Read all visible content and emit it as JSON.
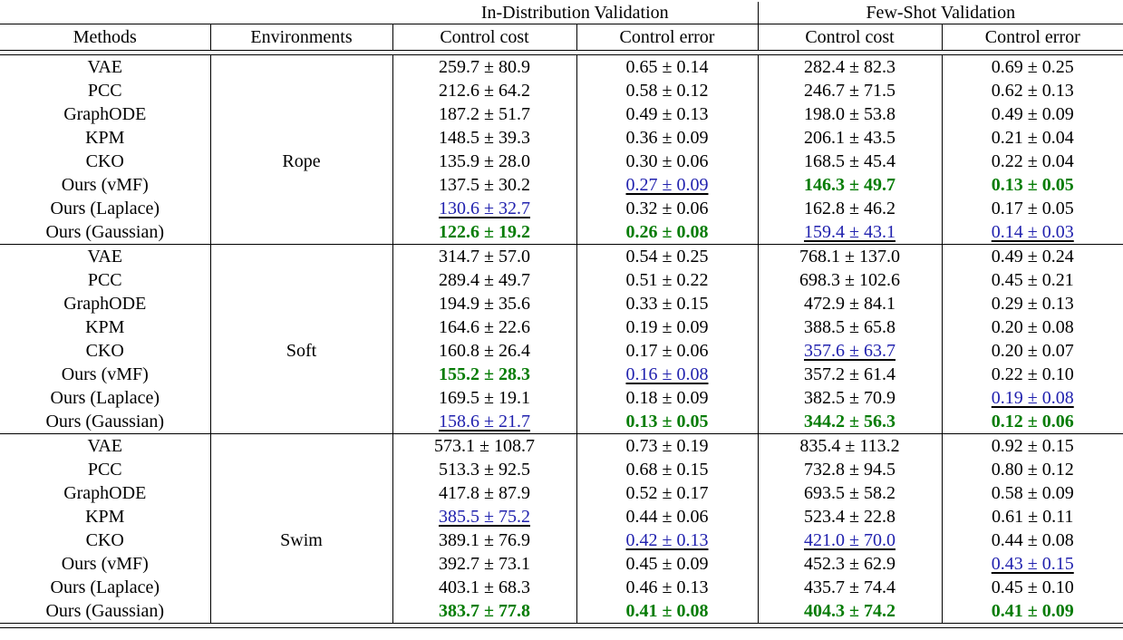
{
  "page": {
    "background": "#ffffff"
  },
  "table": {
    "top_headers": {
      "in_distribution": "In-Distribution Validation",
      "few_shot": "Few-Shot Validation"
    },
    "column_headers": {
      "methods": "Methods",
      "environments": "Environments",
      "id_cost": "Control cost",
      "id_error": "Control error",
      "fs_cost": "Control cost",
      "fs_error": "Control error"
    },
    "colors": {
      "best_bold_green": "#067c06",
      "second_best_blue_underlined": "#2021ae",
      "rule_black": "#000000"
    },
    "blocks": [
      {
        "environment": "Rope",
        "rows": [
          {
            "method": "VAE",
            "values": [
              [
                "259.7 ± 80.9",
                "n"
              ],
              [
                "0.65 ± 0.14",
                "n"
              ],
              [
                "282.4 ± 82.3",
                "n"
              ],
              [
                "0.69 ± 0.25",
                "n"
              ]
            ]
          },
          {
            "method": "PCC",
            "values": [
              [
                "212.6 ± 64.2",
                "n"
              ],
              [
                "0.58 ± 0.12",
                "n"
              ],
              [
                "246.7 ± 71.5",
                "n"
              ],
              [
                "0.62 ± 0.13",
                "n"
              ]
            ]
          },
          {
            "method": "GraphODE",
            "values": [
              [
                "187.2 ± 51.7",
                "n"
              ],
              [
                "0.49 ± 0.13",
                "n"
              ],
              [
                "198.0 ± 53.8",
                "n"
              ],
              [
                "0.49 ± 0.09",
                "n"
              ]
            ]
          },
          {
            "method": "KPM",
            "values": [
              [
                "148.5 ± 39.3",
                "n"
              ],
              [
                "0.36 ± 0.09",
                "n"
              ],
              [
                "206.1 ± 43.5",
                "n"
              ],
              [
                "0.21 ± 0.04",
                "n"
              ]
            ]
          },
          {
            "method": "CKO",
            "values": [
              [
                "135.9 ± 28.0",
                "n"
              ],
              [
                "0.30 ± 0.06",
                "n"
              ],
              [
                "168.5 ± 45.4",
                "n"
              ],
              [
                "0.22 ± 0.04",
                "n"
              ]
            ]
          },
          {
            "method": "Ours (vMF)",
            "values": [
              [
                "137.5 ± 30.2",
                "n"
              ],
              [
                "0.27 ± 0.09",
                "u"
              ],
              [
                "146.3 ± 49.7",
                "g"
              ],
              [
                "0.13 ± 0.05",
                "g"
              ]
            ]
          },
          {
            "method": "Ours (Laplace)",
            "values": [
              [
                "130.6 ± 32.7",
                "u"
              ],
              [
                "0.32 ± 0.06",
                "n"
              ],
              [
                "162.8 ± 46.2",
                "n"
              ],
              [
                "0.17 ± 0.05",
                "n"
              ]
            ]
          },
          {
            "method": "Ours (Gaussian)",
            "values": [
              [
                "122.6 ± 19.2",
                "g"
              ],
              [
                "0.26 ± 0.08",
                "g"
              ],
              [
                "159.4 ± 43.1",
                "u"
              ],
              [
                "0.14 ± 0.03",
                "u"
              ]
            ]
          }
        ]
      },
      {
        "environment": "Soft",
        "rows": [
          {
            "method": "VAE",
            "values": [
              [
                "314.7 ± 57.0",
                "n"
              ],
              [
                "0.54 ± 0.25",
                "n"
              ],
              [
                "768.1 ± 137.0",
                "n"
              ],
              [
                "0.49 ± 0.24",
                "n"
              ]
            ]
          },
          {
            "method": "PCC",
            "values": [
              [
                "289.4 ± 49.7",
                "n"
              ],
              [
                "0.51 ± 0.22",
                "n"
              ],
              [
                "698.3 ± 102.6",
                "n"
              ],
              [
                "0.45 ± 0.21",
                "n"
              ]
            ]
          },
          {
            "method": "GraphODE",
            "values": [
              [
                "194.9 ± 35.6",
                "n"
              ],
              [
                "0.33 ± 0.15",
                "n"
              ],
              [
                "472.9 ± 84.1",
                "n"
              ],
              [
                "0.29 ± 0.13",
                "n"
              ]
            ]
          },
          {
            "method": "KPM",
            "values": [
              [
                "164.6 ± 22.6",
                "n"
              ],
              [
                "0.19 ± 0.09",
                "n"
              ],
              [
                "388.5 ± 65.8",
                "n"
              ],
              [
                "0.20 ± 0.08",
                "n"
              ]
            ]
          },
          {
            "method": "CKO",
            "values": [
              [
                "160.8 ± 26.4",
                "n"
              ],
              [
                "0.17 ± 0.06",
                "n"
              ],
              [
                "357.6 ± 63.7",
                "u"
              ],
              [
                "0.20 ± 0.07",
                "n"
              ]
            ]
          },
          {
            "method": "Ours (vMF)",
            "values": [
              [
                "155.2 ± 28.3",
                "g"
              ],
              [
                "0.16 ± 0.08",
                "u"
              ],
              [
                "357.2 ± 61.4",
                "n"
              ],
              [
                "0.22 ± 0.10",
                "n"
              ]
            ]
          },
          {
            "method": "Ours (Laplace)",
            "values": [
              [
                "169.5 ± 19.1",
                "n"
              ],
              [
                "0.18 ± 0.09",
                "n"
              ],
              [
                "382.5 ± 70.9",
                "n"
              ],
              [
                "0.19 ± 0.08",
                "u"
              ]
            ]
          },
          {
            "method": "Ours (Gaussian)",
            "values": [
              [
                "158.6 ± 21.7",
                "u"
              ],
              [
                "0.13 ± 0.05",
                "g"
              ],
              [
                "344.2 ± 56.3",
                "g"
              ],
              [
                "0.12 ± 0.06",
                "g"
              ]
            ]
          }
        ]
      },
      {
        "environment": "Swim",
        "rows": [
          {
            "method": "VAE",
            "values": [
              [
                "573.1 ± 108.7",
                "n"
              ],
              [
                "0.73 ± 0.19",
                "n"
              ],
              [
                "835.4 ± 113.2",
                "n"
              ],
              [
                "0.92 ± 0.15",
                "n"
              ]
            ]
          },
          {
            "method": "PCC",
            "values": [
              [
                "513.3 ± 92.5",
                "n"
              ],
              [
                "0.68 ± 0.15",
                "n"
              ],
              [
                "732.8 ± 94.5",
                "n"
              ],
              [
                "0.80 ± 0.12",
                "n"
              ]
            ]
          },
          {
            "method": "GraphODE",
            "values": [
              [
                "417.8 ± 87.9",
                "n"
              ],
              [
                "0.52 ± 0.17",
                "n"
              ],
              [
                "693.5 ± 58.2",
                "n"
              ],
              [
                "0.58 ± 0.09",
                "n"
              ]
            ]
          },
          {
            "method": "KPM",
            "values": [
              [
                "385.5 ± 75.2",
                "u"
              ],
              [
                "0.44 ± 0.06",
                "n"
              ],
              [
                "523.4 ± 22.8",
                "n"
              ],
              [
                "0.61 ± 0.11",
                "n"
              ]
            ]
          },
          {
            "method": "CKO",
            "values": [
              [
                "389.1 ± 76.9",
                "n"
              ],
              [
                "0.42 ± 0.13",
                "u"
              ],
              [
                "421.0 ± 70.0",
                "u"
              ],
              [
                "0.44 ± 0.08",
                "n"
              ]
            ]
          },
          {
            "method": "Ours (vMF)",
            "values": [
              [
                "392.7 ± 73.1",
                "n"
              ],
              [
                "0.45 ± 0.09",
                "n"
              ],
              [
                "452.3 ± 62.9",
                "n"
              ],
              [
                "0.43 ± 0.15",
                "u"
              ]
            ]
          },
          {
            "method": "Ours (Laplace)",
            "values": [
              [
                "403.1 ± 68.3",
                "n"
              ],
              [
                "0.46 ± 0.13",
                "n"
              ],
              [
                "435.7 ± 74.4",
                "n"
              ],
              [
                "0.45 ± 0.10",
                "n"
              ]
            ]
          },
          {
            "method": "Ours (Gaussian)",
            "values": [
              [
                "383.7 ± 77.8",
                "g"
              ],
              [
                "0.41 ± 0.08",
                "g"
              ],
              [
                "404.3 ± 74.2",
                "g"
              ],
              [
                "0.41 ± 0.09",
                "g"
              ]
            ]
          }
        ]
      }
    ]
  }
}
